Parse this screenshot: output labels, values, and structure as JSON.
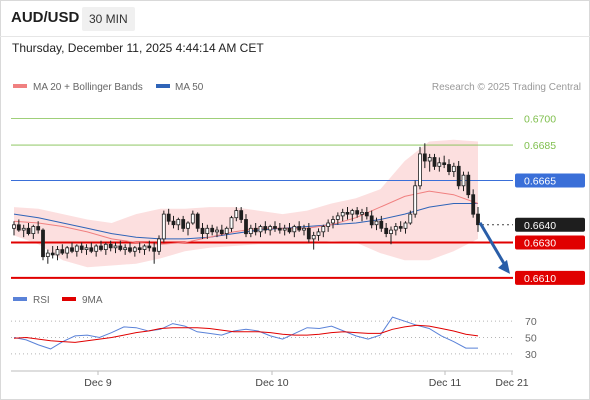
{
  "header": {
    "pair": "AUD/USD",
    "timeframe": "30 MIN",
    "datetime": "Thursday, December 11, 2025 4:44:14 AM CET"
  },
  "legend": {
    "ma20": "MA 20 + Bollinger Bands",
    "ma50": "MA 50",
    "credit": "Research © 2025 Trading Central",
    "rsi": "RSI",
    "rsi_ma": "9MA"
  },
  "colors": {
    "up_candle": "#ffffff",
    "down_candle": "#1e1e1e",
    "ma20": "#f08080",
    "bands": "#fbd9d9",
    "ma50": "#2f64b8",
    "support": "#e00000",
    "target": "#7fbf4d",
    "pivot": "#3a6fd8",
    "arrow": "#2a5ea8",
    "rsi": "#5a82d8",
    "rsi_ma": "#e00000"
  },
  "chart_data": {
    "type": "candlestick",
    "price_axis": {
      "min": 0.6606,
      "max": 0.6711
    },
    "levels": [
      {
        "label": "0.6700",
        "value": 0.67,
        "kind": "target"
      },
      {
        "label": "0.6685",
        "value": 0.6685,
        "kind": "target"
      },
      {
        "label": "0.6665",
        "value": 0.6665,
        "kind": "pivot"
      },
      {
        "label": "0.6640",
        "value": 0.664,
        "kind": "last"
      },
      {
        "label": "0.6630",
        "value": 0.663,
        "kind": "support"
      },
      {
        "label": "0.6610",
        "value": 0.661,
        "kind": "support"
      }
    ],
    "x_labels": [
      "Dec 9",
      "Dec 10",
      "Dec 11",
      "Dec 21"
    ],
    "candles": [
      [
        0.6638,
        0.6642,
        0.6634,
        0.664
      ],
      [
        0.664,
        0.6643,
        0.6636,
        0.6637
      ],
      [
        0.6637,
        0.664,
        0.6633,
        0.6638
      ],
      [
        0.6638,
        0.6641,
        0.6634,
        0.6635
      ],
      [
        0.6635,
        0.664,
        0.6632,
        0.6639
      ],
      [
        0.6639,
        0.6642,
        0.6635,
        0.6637
      ],
      [
        0.6637,
        0.6638,
        0.662,
        0.6622
      ],
      [
        0.6622,
        0.6626,
        0.6618,
        0.6624
      ],
      [
        0.6624,
        0.6628,
        0.6621,
        0.6623
      ],
      [
        0.6623,
        0.6628,
        0.662,
        0.6626
      ],
      [
        0.6626,
        0.6629,
        0.6623,
        0.6624
      ],
      [
        0.6624,
        0.6628,
        0.6621,
        0.6627
      ],
      [
        0.6627,
        0.663,
        0.6624,
        0.6625
      ],
      [
        0.6625,
        0.6629,
        0.6622,
        0.6628
      ],
      [
        0.6628,
        0.663,
        0.6624,
        0.6626
      ],
      [
        0.6626,
        0.6629,
        0.6623,
        0.6627
      ],
      [
        0.6627,
        0.663,
        0.6624,
        0.6625
      ],
      [
        0.6625,
        0.6629,
        0.6622,
        0.6628
      ],
      [
        0.6628,
        0.6631,
        0.6625,
        0.6626
      ],
      [
        0.6626,
        0.663,
        0.6623,
        0.6629
      ],
      [
        0.6629,
        0.6631,
        0.6625,
        0.6627
      ],
      [
        0.6627,
        0.663,
        0.6624,
        0.6628
      ],
      [
        0.6628,
        0.6631,
        0.6625,
        0.6626
      ],
      [
        0.6626,
        0.6629,
        0.6623,
        0.6627
      ],
      [
        0.6627,
        0.663,
        0.6624,
        0.6625
      ],
      [
        0.6625,
        0.6628,
        0.6622,
        0.6627
      ],
      [
        0.6627,
        0.663,
        0.6624,
        0.6626
      ],
      [
        0.6626,
        0.6629,
        0.6623,
        0.6628
      ],
      [
        0.6628,
        0.6631,
        0.6625,
        0.6627
      ],
      [
        0.6627,
        0.663,
        0.6618,
        0.6625
      ],
      [
        0.6625,
        0.6634,
        0.6623,
        0.6632
      ],
      [
        0.6632,
        0.6648,
        0.663,
        0.6646
      ],
      [
        0.6646,
        0.6649,
        0.664,
        0.6642
      ],
      [
        0.6642,
        0.6645,
        0.6638,
        0.664
      ],
      [
        0.664,
        0.6644,
        0.6637,
        0.6643
      ],
      [
        0.6643,
        0.6645,
        0.6636,
        0.6638
      ],
      [
        0.6638,
        0.6642,
        0.6634,
        0.6641
      ],
      [
        0.6641,
        0.6648,
        0.664,
        0.6646
      ],
      [
        0.6646,
        0.6647,
        0.6636,
        0.6638
      ],
      [
        0.6638,
        0.6641,
        0.6632,
        0.6635
      ],
      [
        0.6635,
        0.664,
        0.6632,
        0.6638
      ],
      [
        0.6638,
        0.664,
        0.6634,
        0.6636
      ],
      [
        0.6636,
        0.6639,
        0.6633,
        0.6637
      ],
      [
        0.6637,
        0.664,
        0.6634,
        0.6635
      ],
      [
        0.6635,
        0.6639,
        0.6632,
        0.6638
      ],
      [
        0.6638,
        0.6645,
        0.6636,
        0.6644
      ],
      [
        0.6644,
        0.665,
        0.6642,
        0.6648
      ],
      [
        0.6648,
        0.665,
        0.6641,
        0.6643
      ],
      [
        0.6643,
        0.6646,
        0.6633,
        0.6635
      ],
      [
        0.6635,
        0.664,
        0.6633,
        0.6638
      ],
      [
        0.6638,
        0.6641,
        0.6634,
        0.6636
      ],
      [
        0.6636,
        0.664,
        0.6633,
        0.6639
      ],
      [
        0.6639,
        0.6642,
        0.6635,
        0.6637
      ],
      [
        0.6637,
        0.664,
        0.6634,
        0.6639
      ],
      [
        0.6639,
        0.6642,
        0.6636,
        0.6638
      ],
      [
        0.6638,
        0.6641,
        0.6635,
        0.6637
      ],
      [
        0.6637,
        0.664,
        0.6634,
        0.6638
      ],
      [
        0.6638,
        0.6641,
        0.6635,
        0.6636
      ],
      [
        0.6636,
        0.664,
        0.6633,
        0.6639
      ],
      [
        0.6639,
        0.6642,
        0.6636,
        0.6637
      ],
      [
        0.6637,
        0.664,
        0.6634,
        0.6638
      ],
      [
        0.6638,
        0.6641,
        0.663,
        0.6632
      ],
      [
        0.6632,
        0.6636,
        0.6626,
        0.6634
      ],
      [
        0.6634,
        0.6638,
        0.6631,
        0.6636
      ],
      [
        0.6636,
        0.664,
        0.6633,
        0.6639
      ],
      [
        0.6639,
        0.6643,
        0.6636,
        0.6641
      ],
      [
        0.6641,
        0.6645,
        0.6638,
        0.6643
      ],
      [
        0.6643,
        0.6647,
        0.664,
        0.6645
      ],
      [
        0.6645,
        0.6649,
        0.6642,
        0.6647
      ],
      [
        0.6647,
        0.665,
        0.6643,
        0.6646
      ],
      [
        0.6646,
        0.6649,
        0.6642,
        0.6648
      ],
      [
        0.6648,
        0.665,
        0.6644,
        0.6646
      ],
      [
        0.6646,
        0.6649,
        0.6642,
        0.6647
      ],
      [
        0.6647,
        0.665,
        0.6643,
        0.6645
      ],
      [
        0.6645,
        0.6648,
        0.6638,
        0.664
      ],
      [
        0.664,
        0.6644,
        0.6637,
        0.6642
      ],
      [
        0.6642,
        0.6645,
        0.6636,
        0.6638
      ],
      [
        0.6638,
        0.6641,
        0.6633,
        0.6635
      ],
      [
        0.6635,
        0.6639,
        0.6629,
        0.6637
      ],
      [
        0.6637,
        0.6641,
        0.6634,
        0.6639
      ],
      [
        0.6639,
        0.6642,
        0.6636,
        0.6638
      ],
      [
        0.6638,
        0.6642,
        0.6635,
        0.6641
      ],
      [
        0.6641,
        0.6648,
        0.664,
        0.6646
      ],
      [
        0.6646,
        0.6665,
        0.6644,
        0.6662
      ],
      [
        0.6662,
        0.6684,
        0.666,
        0.668
      ],
      [
        0.668,
        0.6686,
        0.6672,
        0.6676
      ],
      [
        0.6676,
        0.668,
        0.667,
        0.6678
      ],
      [
        0.6678,
        0.668,
        0.6671,
        0.6673
      ],
      [
        0.6673,
        0.6678,
        0.667,
        0.6675
      ],
      [
        0.6675,
        0.6679,
        0.6672,
        0.6674
      ],
      [
        0.6674,
        0.6677,
        0.6668,
        0.667
      ],
      [
        0.667,
        0.6675,
        0.6667,
        0.6673
      ],
      [
        0.6673,
        0.6676,
        0.666,
        0.6662
      ],
      [
        0.6662,
        0.667,
        0.6659,
        0.6668
      ],
      [
        0.6668,
        0.667,
        0.6655,
        0.6657
      ],
      [
        0.6657,
        0.666,
        0.6644,
        0.6646
      ],
      [
        0.6646,
        0.665,
        0.6636,
        0.664
      ]
    ],
    "ma20": [
      0.6642,
      0.6641,
      0.6639,
      0.6636,
      0.6632,
      0.663,
      0.6629,
      0.663,
      0.6633,
      0.6636,
      0.6638,
      0.6638,
      0.6638,
      0.664,
      0.6644,
      0.665,
      0.6656,
      0.6659,
      0.6657,
      0.6652
    ],
    "ma50": [
      0.6646,
      0.6644,
      0.6641,
      0.6638,
      0.6635,
      0.6633,
      0.6632,
      0.6632,
      0.6633,
      0.6635,
      0.6637,
      0.6638,
      0.6639,
      0.664,
      0.6641,
      0.6643,
      0.6646,
      0.665,
      0.6652,
      0.6652
    ],
    "bb_upper": [
      0.665,
      0.6649,
      0.6646,
      0.6643,
      0.6641,
      0.6646,
      0.6649,
      0.6649,
      0.665,
      0.665,
      0.6648,
      0.6646,
      0.6648,
      0.6652,
      0.6655,
      0.666,
      0.6676,
      0.6687,
      0.6688,
      0.6687
    ],
    "bb_lower": [
      0.6634,
      0.6629,
      0.662,
      0.6616,
      0.6617,
      0.6618,
      0.6621,
      0.6625,
      0.6627,
      0.6628,
      0.6629,
      0.6629,
      0.6629,
      0.6631,
      0.663,
      0.6624,
      0.662,
      0.662,
      0.6625,
      0.6632
    ],
    "projection": {
      "from": 0.664,
      "to": 0.661
    },
    "rsi": {
      "ticks": [
        70,
        50,
        30
      ],
      "range": [
        20,
        80
      ],
      "rsi": [
        50,
        47,
        41,
        36,
        45,
        52,
        53,
        50,
        56,
        63,
        62,
        58,
        60,
        67,
        64,
        57,
        55,
        53,
        58,
        60,
        58,
        52,
        48,
        55,
        62,
        61,
        64,
        58,
        52,
        48,
        53,
        75,
        70,
        65,
        61,
        52,
        45,
        37,
        37
      ],
      "ma": [
        49,
        50,
        48,
        46,
        45,
        44,
        46,
        48,
        50,
        53,
        56,
        58,
        61,
        62,
        62,
        62,
        61,
        59,
        57,
        57,
        57,
        56,
        54,
        53,
        53,
        54,
        56,
        57,
        56,
        55,
        55,
        60,
        63,
        65,
        64,
        61,
        58,
        54,
        52
      ]
    }
  }
}
